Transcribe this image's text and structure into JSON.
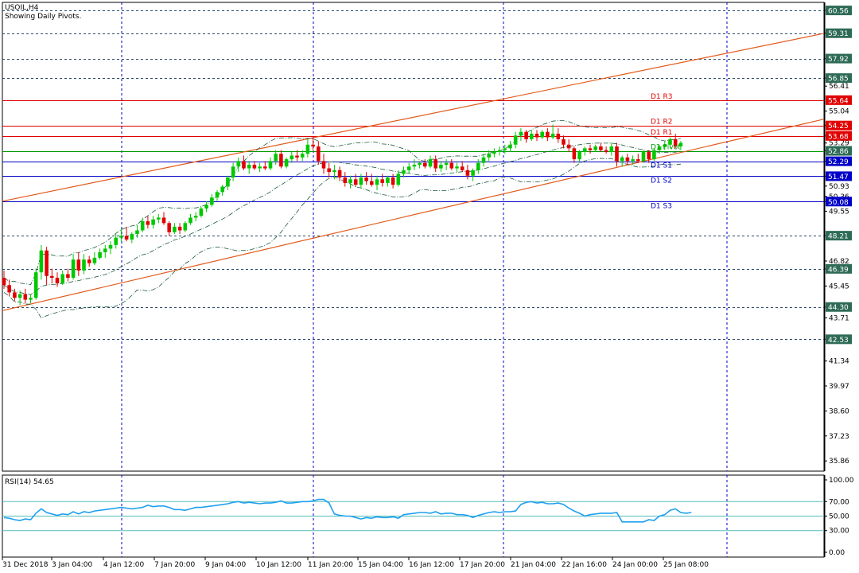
{
  "header": {
    "symbol_title": "USOIL,H4",
    "subtitle": "Showing Daily Pivots."
  },
  "colors": {
    "up_candle": "#00c800",
    "down_candle": "#e00000",
    "grid": "#2a4a6a",
    "pivot_red": "#e00000",
    "pivot_green": "#009900",
    "pivot_blue": "#0000c8",
    "channel": "#e25a1c",
    "axis_label_bg": "#2e6b56",
    "rsi_line": "#1ea0f0",
    "rsi_levels": "#55bbbb"
  },
  "chart_data": [
    {
      "type": "candlestick",
      "title": "USOIL,H4",
      "subtitle": "Showing Daily Pivots.",
      "y_ticks": [
        "60.56",
        "59.31",
        "57.92",
        "56.85",
        "56.41",
        "55.04",
        "54.25",
        "53.68",
        "53.29",
        "52.86",
        "52.29",
        "51.47",
        "50.93",
        "50.36",
        "50.08",
        "49.55",
        "48.21",
        "46.82",
        "46.39",
        "45.45",
        "44.30",
        "43.71",
        "42.53",
        "41.34",
        "39.97",
        "38.60",
        "37.23",
        "35.86"
      ],
      "highlighted_levels": [
        {
          "label": "60.56",
          "value": 60.56,
          "style": "plain"
        },
        {
          "label": "59.31",
          "value": 59.31,
          "style": "plain"
        },
        {
          "label": "57.92",
          "value": 57.92,
          "style": "plain"
        },
        {
          "label": "56.85",
          "value": 56.85,
          "style": "plain"
        },
        {
          "label": "55.64",
          "value": 55.64,
          "style": "red"
        },
        {
          "label": "54.25",
          "value": 54.25,
          "style": "red"
        },
        {
          "label": "53.68",
          "value": 53.68,
          "style": "red"
        },
        {
          "label": "52.86",
          "value": 52.86,
          "style": "green"
        },
        {
          "label": "52.29",
          "value": 52.29,
          "style": "blue"
        },
        {
          "label": "51.47",
          "value": 51.47,
          "style": "blue"
        },
        {
          "label": "50.08",
          "value": 50.08,
          "style": "blue"
        },
        {
          "label": "48.21",
          "value": 48.21,
          "style": "plain"
        },
        {
          "label": "46.39",
          "value": 46.39,
          "style": "plain"
        },
        {
          "label": "44.30",
          "value": 44.3,
          "style": "plain"
        },
        {
          "label": "42.53",
          "value": 42.53,
          "style": "plain"
        }
      ],
      "pivots": [
        {
          "label": "D1 R3",
          "value": 55.64,
          "color": "red"
        },
        {
          "label": "D1 R2",
          "value": 54.25,
          "color": "red"
        },
        {
          "label": "D1 R1",
          "value": 53.68,
          "color": "red"
        },
        {
          "label": "D1 Pivot",
          "value": 52.86,
          "color": "green"
        },
        {
          "label": "D1 S1",
          "value": 52.29,
          "color": "blue"
        },
        {
          "label": "D1 S2",
          "value": 51.47,
          "color": "blue"
        },
        {
          "label": "D1 S3",
          "value": 50.08,
          "color": "blue"
        }
      ],
      "x_ticks": [
        "31 Dec 2018",
        "3 Jan 04:00",
        "4 Jan 12:00",
        "7 Jan 20:00",
        "9 Jan 04:00",
        "10 Jan 12:00",
        "11 Jan 20:00",
        "15 Jan 04:00",
        "16 Jan 12:00",
        "17 Jan 20:00",
        "21 Jan 04:00",
        "22 Jan 16:00",
        "24 Jan 00:00",
        "25 Jan 08:00"
      ],
      "x_range_bars": [
        0,
        155
      ],
      "ylim": [
        35.3,
        61.0
      ],
      "candles": [
        {
          "o": 45.9,
          "h": 46.3,
          "l": 45.3,
          "c": 45.5
        },
        {
          "o": 45.5,
          "h": 45.8,
          "l": 44.9,
          "c": 45.1
        },
        {
          "o": 45.1,
          "h": 45.3,
          "l": 44.6,
          "c": 44.8
        },
        {
          "o": 44.8,
          "h": 45.2,
          "l": 44.4,
          "c": 45.0
        },
        {
          "o": 45.0,
          "h": 45.3,
          "l": 44.5,
          "c": 44.7
        },
        {
          "o": 44.7,
          "h": 45.0,
          "l": 44.5,
          "c": 44.8
        },
        {
          "o": 44.8,
          "h": 46.4,
          "l": 44.7,
          "c": 46.2
        },
        {
          "o": 46.2,
          "h": 47.7,
          "l": 45.8,
          "c": 47.4
        },
        {
          "o": 47.4,
          "h": 47.6,
          "l": 45.5,
          "c": 46.0
        },
        {
          "o": 46.0,
          "h": 46.4,
          "l": 45.6,
          "c": 45.9
        },
        {
          "o": 45.9,
          "h": 46.2,
          "l": 45.4,
          "c": 45.6
        },
        {
          "o": 45.6,
          "h": 46.3,
          "l": 45.5,
          "c": 46.1
        },
        {
          "o": 46.1,
          "h": 46.4,
          "l": 45.7,
          "c": 45.9
        },
        {
          "o": 45.9,
          "h": 47.2,
          "l": 45.8,
          "c": 46.9
        },
        {
          "o": 46.9,
          "h": 47.3,
          "l": 46.0,
          "c": 46.3
        },
        {
          "o": 46.3,
          "h": 47.2,
          "l": 46.1,
          "c": 46.9
        },
        {
          "o": 46.9,
          "h": 47.1,
          "l": 46.5,
          "c": 46.7
        },
        {
          "o": 46.7,
          "h": 47.3,
          "l": 46.6,
          "c": 47.0
        },
        {
          "o": 47.0,
          "h": 47.5,
          "l": 46.9,
          "c": 47.3
        },
        {
          "o": 47.3,
          "h": 47.7,
          "l": 47.0,
          "c": 47.5
        },
        {
          "o": 47.5,
          "h": 47.9,
          "l": 47.2,
          "c": 47.7
        },
        {
          "o": 47.7,
          "h": 48.3,
          "l": 47.5,
          "c": 48.1
        },
        {
          "o": 48.1,
          "h": 48.6,
          "l": 47.9,
          "c": 48.2
        },
        {
          "o": 48.2,
          "h": 48.7,
          "l": 47.9,
          "c": 48.0
        },
        {
          "o": 48.0,
          "h": 48.4,
          "l": 47.8,
          "c": 48.3
        },
        {
          "o": 48.3,
          "h": 48.8,
          "l": 48.1,
          "c": 48.5
        },
        {
          "o": 48.5,
          "h": 49.2,
          "l": 48.4,
          "c": 49.0
        },
        {
          "o": 49.0,
          "h": 49.3,
          "l": 48.6,
          "c": 48.8
        },
        {
          "o": 48.8,
          "h": 49.3,
          "l": 48.6,
          "c": 49.1
        },
        {
          "o": 49.1,
          "h": 49.4,
          "l": 48.9,
          "c": 49.2
        },
        {
          "o": 49.2,
          "h": 49.5,
          "l": 48.8,
          "c": 48.9
        },
        {
          "o": 48.9,
          "h": 49.0,
          "l": 48.2,
          "c": 48.4
        },
        {
          "o": 48.4,
          "h": 48.9,
          "l": 48.3,
          "c": 48.7
        },
        {
          "o": 48.7,
          "h": 48.9,
          "l": 48.3,
          "c": 48.5
        },
        {
          "o": 48.5,
          "h": 49.0,
          "l": 48.4,
          "c": 48.9
        },
        {
          "o": 48.9,
          "h": 49.4,
          "l": 48.8,
          "c": 49.2
        },
        {
          "o": 49.2,
          "h": 49.5,
          "l": 49.0,
          "c": 49.3
        },
        {
          "o": 49.3,
          "h": 49.8,
          "l": 49.2,
          "c": 49.7
        },
        {
          "o": 49.7,
          "h": 50.1,
          "l": 49.5,
          "c": 49.9
        },
        {
          "o": 49.9,
          "h": 50.5,
          "l": 49.8,
          "c": 50.3
        },
        {
          "o": 50.3,
          "h": 50.7,
          "l": 50.1,
          "c": 50.6
        },
        {
          "o": 50.6,
          "h": 51.0,
          "l": 50.4,
          "c": 50.9
        },
        {
          "o": 50.9,
          "h": 51.5,
          "l": 50.7,
          "c": 51.4
        },
        {
          "o": 51.4,
          "h": 52.2,
          "l": 51.2,
          "c": 52.0
        },
        {
          "o": 52.0,
          "h": 52.5,
          "l": 51.7,
          "c": 52.3
        },
        {
          "o": 52.3,
          "h": 52.6,
          "l": 51.8,
          "c": 51.9
        },
        {
          "o": 51.9,
          "h": 52.3,
          "l": 51.6,
          "c": 52.1
        },
        {
          "o": 52.1,
          "h": 52.3,
          "l": 51.8,
          "c": 51.9
        },
        {
          "o": 51.9,
          "h": 52.2,
          "l": 51.7,
          "c": 52.0
        },
        {
          "o": 52.0,
          "h": 52.3,
          "l": 51.8,
          "c": 51.9
        },
        {
          "o": 51.9,
          "h": 52.5,
          "l": 51.8,
          "c": 52.3
        },
        {
          "o": 52.3,
          "h": 52.9,
          "l": 52.1,
          "c": 52.7
        },
        {
          "o": 52.7,
          "h": 52.9,
          "l": 51.9,
          "c": 52.0
        },
        {
          "o": 52.0,
          "h": 52.5,
          "l": 51.9,
          "c": 52.4
        },
        {
          "o": 52.4,
          "h": 52.8,
          "l": 52.2,
          "c": 52.6
        },
        {
          "o": 52.6,
          "h": 52.9,
          "l": 52.3,
          "c": 52.5
        },
        {
          "o": 52.5,
          "h": 52.9,
          "l": 52.3,
          "c": 52.7
        },
        {
          "o": 52.7,
          "h": 53.5,
          "l": 52.5,
          "c": 53.2
        },
        {
          "o": 53.2,
          "h": 53.6,
          "l": 52.9,
          "c": 53.1
        },
        {
          "o": 53.1,
          "h": 53.4,
          "l": 52.1,
          "c": 52.3
        },
        {
          "o": 52.3,
          "h": 52.7,
          "l": 51.6,
          "c": 51.9
        },
        {
          "o": 51.9,
          "h": 52.2,
          "l": 51.4,
          "c": 51.7
        },
        {
          "o": 51.7,
          "h": 52.1,
          "l": 51.3,
          "c": 51.8
        },
        {
          "o": 51.8,
          "h": 52.0,
          "l": 51.2,
          "c": 51.4
        },
        {
          "o": 51.4,
          "h": 51.7,
          "l": 50.9,
          "c": 51.1
        },
        {
          "o": 51.1,
          "h": 51.5,
          "l": 50.8,
          "c": 51.3
        },
        {
          "o": 51.3,
          "h": 51.6,
          "l": 50.9,
          "c": 51.0
        },
        {
          "o": 51.0,
          "h": 51.6,
          "l": 50.8,
          "c": 51.4
        },
        {
          "o": 51.4,
          "h": 51.7,
          "l": 51.0,
          "c": 51.2
        },
        {
          "o": 51.2,
          "h": 51.6,
          "l": 50.9,
          "c": 51.0
        },
        {
          "o": 51.0,
          "h": 51.5,
          "l": 50.7,
          "c": 51.3
        },
        {
          "o": 51.3,
          "h": 51.6,
          "l": 50.9,
          "c": 51.1
        },
        {
          "o": 51.1,
          "h": 51.5,
          "l": 50.9,
          "c": 51.4
        },
        {
          "o": 51.4,
          "h": 51.6,
          "l": 50.8,
          "c": 51.0
        },
        {
          "o": 51.0,
          "h": 51.8,
          "l": 50.9,
          "c": 51.6
        },
        {
          "o": 51.6,
          "h": 52.0,
          "l": 51.4,
          "c": 51.8
        },
        {
          "o": 51.8,
          "h": 52.2,
          "l": 51.6,
          "c": 52.0
        },
        {
          "o": 52.0,
          "h": 52.4,
          "l": 51.8,
          "c": 52.1
        },
        {
          "o": 52.1,
          "h": 52.3,
          "l": 51.9,
          "c": 52.2
        },
        {
          "o": 52.2,
          "h": 52.4,
          "l": 51.9,
          "c": 52.0
        },
        {
          "o": 52.0,
          "h": 52.6,
          "l": 51.9,
          "c": 52.4
        },
        {
          "o": 52.4,
          "h": 52.6,
          "l": 51.7,
          "c": 51.9
        },
        {
          "o": 51.9,
          "h": 52.3,
          "l": 51.7,
          "c": 52.1
        },
        {
          "o": 52.1,
          "h": 52.4,
          "l": 51.8,
          "c": 52.2
        },
        {
          "o": 52.2,
          "h": 52.4,
          "l": 51.8,
          "c": 51.9
        },
        {
          "o": 51.9,
          "h": 52.2,
          "l": 51.7,
          "c": 52.0
        },
        {
          "o": 52.0,
          "h": 52.3,
          "l": 51.7,
          "c": 51.8
        },
        {
          "o": 51.8,
          "h": 52.1,
          "l": 51.3,
          "c": 51.5
        },
        {
          "o": 51.5,
          "h": 51.9,
          "l": 51.2,
          "c": 51.8
        },
        {
          "o": 51.8,
          "h": 52.4,
          "l": 51.6,
          "c": 52.2
        },
        {
          "o": 52.2,
          "h": 52.7,
          "l": 52.0,
          "c": 52.5
        },
        {
          "o": 52.5,
          "h": 52.9,
          "l": 52.3,
          "c": 52.7
        },
        {
          "o": 52.7,
          "h": 53.0,
          "l": 52.5,
          "c": 52.8
        },
        {
          "o": 52.8,
          "h": 53.1,
          "l": 52.6,
          "c": 52.9
        },
        {
          "o": 52.9,
          "h": 53.2,
          "l": 52.7,
          "c": 53.0
        },
        {
          "o": 53.0,
          "h": 53.4,
          "l": 52.8,
          "c": 53.2
        },
        {
          "o": 53.2,
          "h": 53.9,
          "l": 53.0,
          "c": 53.7
        },
        {
          "o": 53.7,
          "h": 54.1,
          "l": 53.4,
          "c": 53.9
        },
        {
          "o": 53.9,
          "h": 54.0,
          "l": 53.3,
          "c": 53.5
        },
        {
          "o": 53.5,
          "h": 54.0,
          "l": 53.4,
          "c": 53.8
        },
        {
          "o": 53.8,
          "h": 54.0,
          "l": 53.4,
          "c": 53.6
        },
        {
          "o": 53.6,
          "h": 54.0,
          "l": 53.5,
          "c": 53.9
        },
        {
          "o": 53.9,
          "h": 54.1,
          "l": 53.4,
          "c": 53.6
        },
        {
          "o": 53.6,
          "h": 54.3,
          "l": 53.5,
          "c": 53.8
        },
        {
          "o": 53.8,
          "h": 54.1,
          "l": 53.3,
          "c": 53.5
        },
        {
          "o": 53.5,
          "h": 53.7,
          "l": 53.0,
          "c": 53.2
        },
        {
          "o": 53.2,
          "h": 53.5,
          "l": 52.8,
          "c": 53.0
        },
        {
          "o": 53.0,
          "h": 53.1,
          "l": 52.2,
          "c": 52.4
        },
        {
          "o": 52.4,
          "h": 52.9,
          "l": 52.2,
          "c": 52.8
        },
        {
          "o": 52.8,
          "h": 53.1,
          "l": 52.6,
          "c": 53.0
        },
        {
          "o": 53.0,
          "h": 53.2,
          "l": 52.7,
          "c": 52.9
        },
        {
          "o": 52.9,
          "h": 53.2,
          "l": 52.8,
          "c": 53.1
        },
        {
          "o": 53.1,
          "h": 53.3,
          "l": 52.8,
          "c": 52.9
        },
        {
          "o": 52.9,
          "h": 53.1,
          "l": 52.7,
          "c": 52.8
        },
        {
          "o": 52.8,
          "h": 53.3,
          "l": 52.6,
          "c": 53.1
        },
        {
          "o": 53.1,
          "h": 53.3,
          "l": 52.0,
          "c": 52.3
        },
        {
          "o": 52.3,
          "h": 52.6,
          "l": 52.0,
          "c": 52.5
        },
        {
          "o": 52.5,
          "h": 52.7,
          "l": 52.1,
          "c": 52.3
        },
        {
          "o": 52.3,
          "h": 52.6,
          "l": 52.1,
          "c": 52.4
        },
        {
          "o": 52.4,
          "h": 52.7,
          "l": 52.2,
          "c": 52.3
        },
        {
          "o": 52.3,
          "h": 52.9,
          "l": 52.2,
          "c": 52.8
        },
        {
          "o": 52.8,
          "h": 52.9,
          "l": 52.2,
          "c": 52.4
        },
        {
          "o": 52.4,
          "h": 53.0,
          "l": 52.3,
          "c": 52.9
        },
        {
          "o": 52.9,
          "h": 53.2,
          "l": 52.7,
          "c": 53.1
        },
        {
          "o": 53.1,
          "h": 53.4,
          "l": 52.9,
          "c": 53.2
        },
        {
          "o": 53.2,
          "h": 53.6,
          "l": 53.0,
          "c": 53.5
        },
        {
          "o": 53.5,
          "h": 53.8,
          "l": 53.0,
          "c": 53.1
        },
        {
          "o": 53.1,
          "h": 53.4,
          "l": 52.9,
          "c": 53.3
        }
      ]
    },
    {
      "type": "line",
      "title": "RSI(14) 54.65",
      "y_ticks": [
        "100.00",
        "70.00",
        "50.00",
        "30.00",
        "0.00"
      ],
      "levels": [
        70,
        50,
        30
      ],
      "ylim": [
        0,
        100
      ],
      "values": [
        48,
        47,
        45,
        44,
        46,
        45,
        54,
        60,
        55,
        53,
        51,
        53,
        52,
        56,
        53,
        56,
        55,
        57,
        58,
        59,
        60,
        61,
        62,
        61,
        60,
        61,
        62,
        65,
        63,
        64,
        64,
        62,
        59,
        59,
        58,
        60,
        62,
        62,
        63,
        64,
        65,
        66,
        67,
        69,
        70,
        68,
        69,
        68,
        67,
        68,
        68,
        69,
        71,
        68,
        68,
        69,
        70,
        70,
        71,
        73,
        73,
        68,
        53,
        51,
        50,
        50,
        48,
        46,
        48,
        47,
        49,
        48,
        48,
        49,
        47,
        52,
        53,
        54,
        55,
        55,
        54,
        56,
        53,
        54,
        54,
        52,
        52,
        51,
        48,
        51,
        53,
        55,
        56,
        55,
        56,
        56,
        57,
        66,
        69,
        70,
        68,
        69,
        67,
        67,
        68,
        66,
        61,
        57,
        54,
        50,
        52,
        53,
        54,
        54,
        54,
        55,
        42,
        42,
        42,
        42,
        42,
        45,
        44,
        50,
        52,
        58,
        60,
        55,
        54,
        55
      ]
    }
  ]
}
